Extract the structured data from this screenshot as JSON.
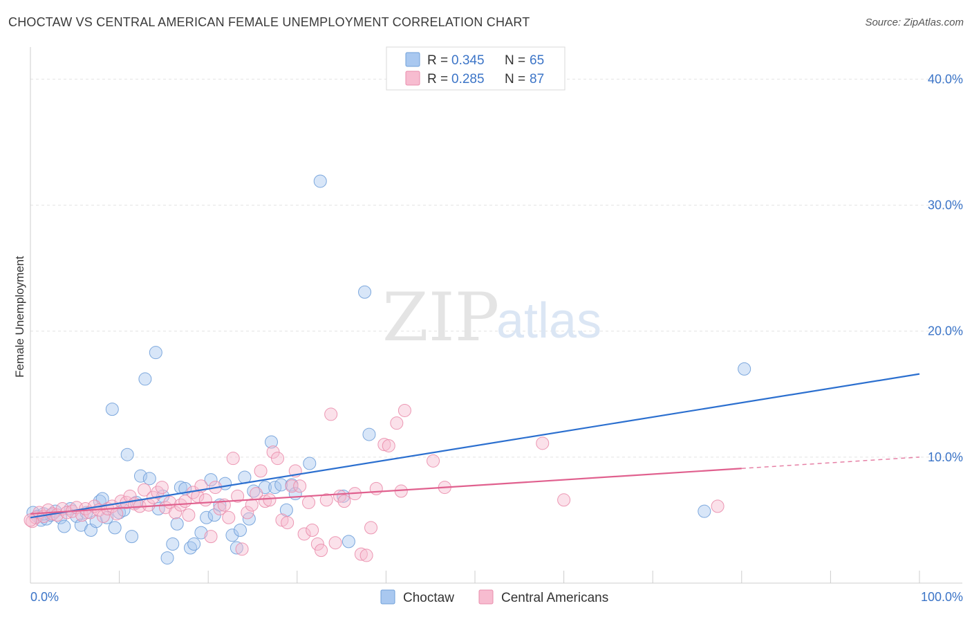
{
  "header": {
    "title": "CHOCTAW VS CENTRAL AMERICAN FEMALE UNEMPLOYMENT CORRELATION CHART",
    "source": "Source: ZipAtlas.com"
  },
  "watermark": {
    "zip": "ZIP",
    "atlas": "atlas"
  },
  "legend_top": {
    "rows": [
      {
        "r_label": "R =",
        "r_value": "0.345",
        "n_label": "N =",
        "n_value": "65"
      },
      {
        "r_label": "R =",
        "r_value": "0.285",
        "n_label": "N =",
        "n_value": "87"
      }
    ]
  },
  "legend_bottom": {
    "items": [
      "Choctaw",
      "Central Americans"
    ]
  },
  "chart_data": {
    "type": "scatter",
    "title": "CHOCTAW VS CENTRAL AMERICAN FEMALE UNEMPLOYMENT CORRELATION CHART",
    "xlabel": "",
    "ylabel": "Female Unemployment",
    "xlim": [
      0,
      100
    ],
    "ylim": [
      0,
      42
    ],
    "x_tick_labels": [
      "0.0%",
      "100.0%"
    ],
    "y_ticks": [
      10,
      20,
      30,
      40
    ],
    "y_tick_labels": [
      "10.0%",
      "20.0%",
      "30.0%",
      "40.0%"
    ],
    "grid": true,
    "legend_placement": "top-center",
    "series": [
      {
        "name": "Choctaw",
        "color": "#a9c8f0",
        "stroke": "#6f9fd9",
        "line_color": "#2b6fcf",
        "r": 0.345,
        "n": 65,
        "trend": {
          "x": [
            0,
            100
          ],
          "y": [
            5.2,
            16.6
          ]
        },
        "points": [
          [
            0.3,
            5.6
          ],
          [
            0.8,
            5.3
          ],
          [
            1.2,
            5.0
          ],
          [
            1.8,
            5.1
          ],
          [
            2.3,
            5.4
          ],
          [
            2.8,
            5.7
          ],
          [
            3.4,
            5.2
          ],
          [
            3.8,
            4.5
          ],
          [
            4.5,
            5.9
          ],
          [
            5.2,
            5.3
          ],
          [
            5.7,
            4.6
          ],
          [
            6.3,
            5.6
          ],
          [
            6.8,
            4.2
          ],
          [
            7.4,
            4.9
          ],
          [
            7.8,
            6.5
          ],
          [
            8.1,
            6.7
          ],
          [
            8.6,
            5.2
          ],
          [
            9.2,
            13.8
          ],
          [
            9.5,
            4.4
          ],
          [
            10.0,
            5.6
          ],
          [
            10.5,
            5.8
          ],
          [
            10.9,
            10.2
          ],
          [
            11.4,
            3.7
          ],
          [
            11.9,
            6.4
          ],
          [
            12.4,
            8.5
          ],
          [
            12.9,
            16.2
          ],
          [
            13.4,
            8.3
          ],
          [
            14.1,
            18.3
          ],
          [
            14.4,
            5.9
          ],
          [
            14.9,
            6.9
          ],
          [
            15.4,
            2.0
          ],
          [
            16.0,
            3.1
          ],
          [
            16.5,
            4.7
          ],
          [
            16.9,
            7.6
          ],
          [
            17.4,
            7.5
          ],
          [
            18.0,
            2.8
          ],
          [
            18.4,
            3.1
          ],
          [
            19.2,
            4.0
          ],
          [
            19.8,
            5.2
          ],
          [
            20.3,
            8.2
          ],
          [
            20.7,
            5.4
          ],
          [
            21.3,
            6.2
          ],
          [
            21.9,
            7.9
          ],
          [
            22.7,
            3.8
          ],
          [
            23.2,
            2.8
          ],
          [
            23.6,
            4.2
          ],
          [
            24.1,
            8.4
          ],
          [
            24.6,
            5.1
          ],
          [
            25.1,
            7.3
          ],
          [
            26.4,
            7.6
          ],
          [
            27.1,
            11.2
          ],
          [
            27.5,
            7.6
          ],
          [
            28.2,
            7.8
          ],
          [
            28.8,
            5.8
          ],
          [
            29.4,
            7.8
          ],
          [
            29.8,
            7.1
          ],
          [
            31.4,
            9.5
          ],
          [
            32.6,
            31.9
          ],
          [
            35.2,
            6.9
          ],
          [
            35.8,
            3.3
          ],
          [
            37.6,
            23.1
          ],
          [
            38.1,
            11.8
          ],
          [
            80.3,
            17.0
          ],
          [
            75.8,
            5.7
          ],
          [
            1.5,
            5.5
          ]
        ]
      },
      {
        "name": "Central Americans",
        "color": "#f7bcd0",
        "stroke": "#ea8cab",
        "line_color": "#e0608e",
        "r": 0.285,
        "n": 87,
        "trend": {
          "x": [
            0,
            80
          ],
          "y": [
            5.5,
            9.1
          ]
        },
        "trend_extension": {
          "x": [
            80,
            100
          ],
          "y": [
            9.1,
            10.0
          ]
        },
        "points": [
          [
            0.2,
            4.9
          ],
          [
            0.6,
            5.2
          ],
          [
            1.0,
            5.6
          ],
          [
            1.5,
            5.3
          ],
          [
            2.0,
            5.8
          ],
          [
            2.5,
            5.5
          ],
          [
            3.0,
            5.4
          ],
          [
            3.6,
            5.9
          ],
          [
            4.1,
            5.6
          ],
          [
            4.7,
            5.7
          ],
          [
            5.2,
            6.0
          ],
          [
            5.8,
            5.4
          ],
          [
            6.2,
            5.9
          ],
          [
            6.7,
            5.6
          ],
          [
            7.2,
            6.1
          ],
          [
            7.7,
            5.8
          ],
          [
            8.2,
            5.3
          ],
          [
            8.7,
            5.9
          ],
          [
            9.2,
            6.1
          ],
          [
            9.7,
            5.5
          ],
          [
            10.2,
            6.5
          ],
          [
            10.8,
            6.4
          ],
          [
            11.2,
            6.9
          ],
          [
            11.7,
            6.3
          ],
          [
            12.3,
            6.1
          ],
          [
            12.8,
            7.4
          ],
          [
            13.3,
            6.2
          ],
          [
            13.8,
            6.8
          ],
          [
            14.3,
            7.2
          ],
          [
            14.8,
            7.6
          ],
          [
            15.2,
            6.0
          ],
          [
            15.7,
            6.4
          ],
          [
            16.3,
            5.6
          ],
          [
            16.9,
            6.2
          ],
          [
            17.4,
            6.5
          ],
          [
            17.8,
            5.4
          ],
          [
            18.3,
            7.2
          ],
          [
            18.8,
            6.9
          ],
          [
            19.2,
            7.7
          ],
          [
            19.7,
            6.6
          ],
          [
            20.3,
            3.7
          ],
          [
            20.8,
            7.6
          ],
          [
            21.3,
            5.9
          ],
          [
            21.8,
            6.2
          ],
          [
            22.3,
            5.2
          ],
          [
            22.8,
            9.9
          ],
          [
            23.3,
            6.9
          ],
          [
            23.8,
            2.7
          ],
          [
            24.4,
            5.6
          ],
          [
            24.9,
            6.2
          ],
          [
            25.4,
            7.1
          ],
          [
            25.9,
            8.9
          ],
          [
            26.4,
            6.5
          ],
          [
            26.9,
            6.6
          ],
          [
            27.3,
            10.4
          ],
          [
            27.8,
            9.9
          ],
          [
            28.3,
            5.0
          ],
          [
            28.9,
            4.8
          ],
          [
            29.4,
            7.7
          ],
          [
            29.8,
            8.9
          ],
          [
            30.3,
            7.7
          ],
          [
            30.8,
            3.9
          ],
          [
            31.3,
            6.4
          ],
          [
            31.7,
            4.2
          ],
          [
            32.3,
            3.1
          ],
          [
            32.7,
            2.6
          ],
          [
            33.3,
            6.6
          ],
          [
            33.8,
            13.4
          ],
          [
            34.3,
            3.2
          ],
          [
            34.8,
            6.9
          ],
          [
            35.3,
            6.5
          ],
          [
            36.5,
            7.1
          ],
          [
            37.2,
            2.3
          ],
          [
            37.8,
            2.2
          ],
          [
            38.3,
            4.4
          ],
          [
            38.9,
            7.5
          ],
          [
            39.8,
            11.0
          ],
          [
            40.3,
            10.9
          ],
          [
            41.2,
            12.7
          ],
          [
            41.7,
            7.3
          ],
          [
            42.1,
            13.7
          ],
          [
            45.3,
            9.7
          ],
          [
            46.6,
            7.6
          ],
          [
            57.6,
            11.1
          ],
          [
            60.0,
            6.6
          ],
          [
            77.3,
            6.1
          ],
          [
            0.0,
            5.0
          ]
        ]
      }
    ]
  }
}
